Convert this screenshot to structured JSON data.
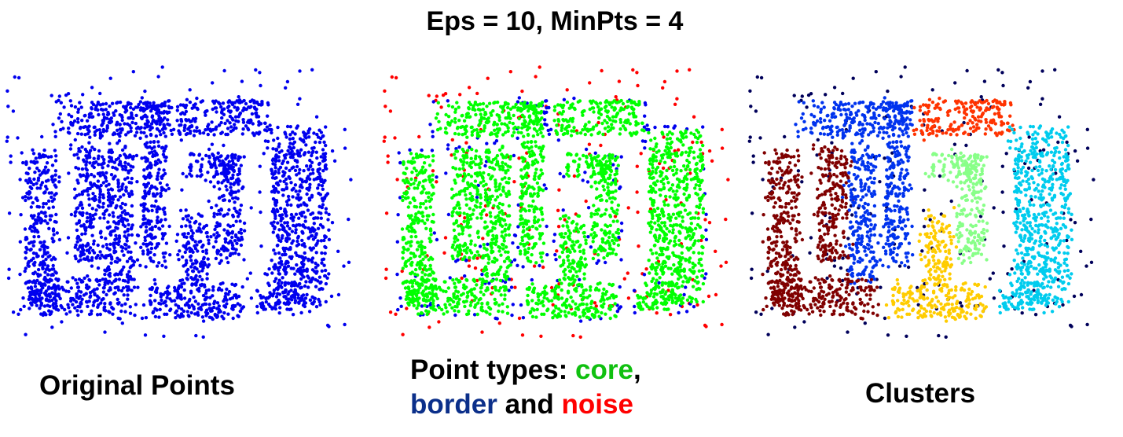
{
  "title": "Eps = 10, MinPts = 4",
  "captions": {
    "original": "Original Points",
    "types_prefix": "Point types: ",
    "types_core": "core",
    "types_comma": ",",
    "types_border": "border",
    "types_and": " and ",
    "types_noise": "noise",
    "clusters": "Clusters"
  },
  "colors": {
    "original_points": "#0000ee",
    "core": "#00ff00",
    "border": "#0000ee",
    "noise": "#ff0000",
    "caption_core": "#10c010",
    "caption_border": "#0b2f8a",
    "caption_noise": "#ff0000",
    "cluster_noise": "#00005a",
    "cluster_blue": "#0033ee",
    "cluster_darkred": "#800000",
    "cluster_orangered": "#ff3300",
    "cluster_lightgreen": "#88ff88",
    "cluster_yellow": "#ffcc00",
    "cluster_cyan": "#00ccee"
  },
  "chart_data": [
    {
      "type": "scatter",
      "title": "Original Points",
      "series": [
        {
          "name": "",
          "color": "#0000ee",
          "density": "dense",
          "role": "all"
        }
      ]
    },
    {
      "type": "scatter",
      "title": "Point types",
      "series": [
        {
          "name": "core",
          "color": "#00ff00",
          "role": "core"
        },
        {
          "name": "border",
          "color": "#0000ee",
          "role": "border"
        },
        {
          "name": "noise",
          "color": "#ff0000",
          "role": "noise"
        }
      ]
    },
    {
      "type": "scatter",
      "title": "Clusters",
      "series": [
        {
          "name": "",
          "color": "#0033ee",
          "role": "cluster"
        },
        {
          "name": "",
          "color": "#800000",
          "role": "cluster"
        },
        {
          "name": "",
          "color": "#ff3300",
          "role": "cluster"
        },
        {
          "name": "",
          "color": "#88ff88",
          "role": "cluster"
        },
        {
          "name": "",
          "color": "#ffcc00",
          "role": "cluster"
        },
        {
          "name": "",
          "color": "#00ccee",
          "role": "cluster"
        },
        {
          "name": "",
          "color": "#00005a",
          "role": "noise"
        }
      ]
    }
  ]
}
